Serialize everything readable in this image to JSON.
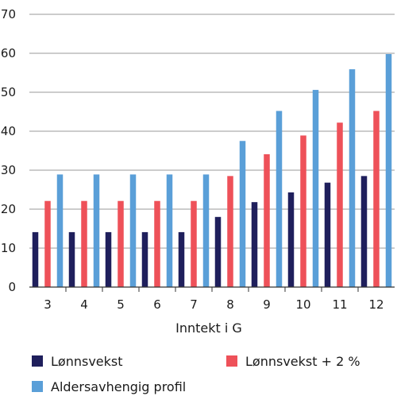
{
  "chart_data": {
    "type": "bar",
    "categories": [
      "3",
      "4",
      "5",
      "6",
      "7",
      "8",
      "9",
      "10",
      "11",
      "12"
    ],
    "series": [
      {
        "name": "Lønnsvekst",
        "color": "#1f1f5c",
        "values": [
          14.1,
          14.1,
          14.1,
          14.1,
          14.1,
          18.0,
          21.8,
          24.3,
          26.8,
          28.5
        ]
      },
      {
        "name": "Lønnsvekst + 2 %",
        "color": "#ee5159",
        "values": [
          22.1,
          22.1,
          22.1,
          22.1,
          22.1,
          28.5,
          34.1,
          38.9,
          42.2,
          45.2
        ]
      },
      {
        "name": "Aldersavhengig profil",
        "color": "#5a9fd8",
        "values": [
          28.9,
          28.9,
          28.9,
          28.9,
          28.9,
          37.5,
          45.2,
          50.6,
          55.9,
          59.8
        ]
      }
    ],
    "yticks": [
      "0",
      "10",
      "20",
      "30",
      "40",
      "50",
      "60",
      "70"
    ],
    "ylim": [
      0,
      70
    ],
    "xlabel": "Inntekt i G",
    "ylabel": "",
    "title": "",
    "grid": true,
    "legend_position": "bottom"
  }
}
